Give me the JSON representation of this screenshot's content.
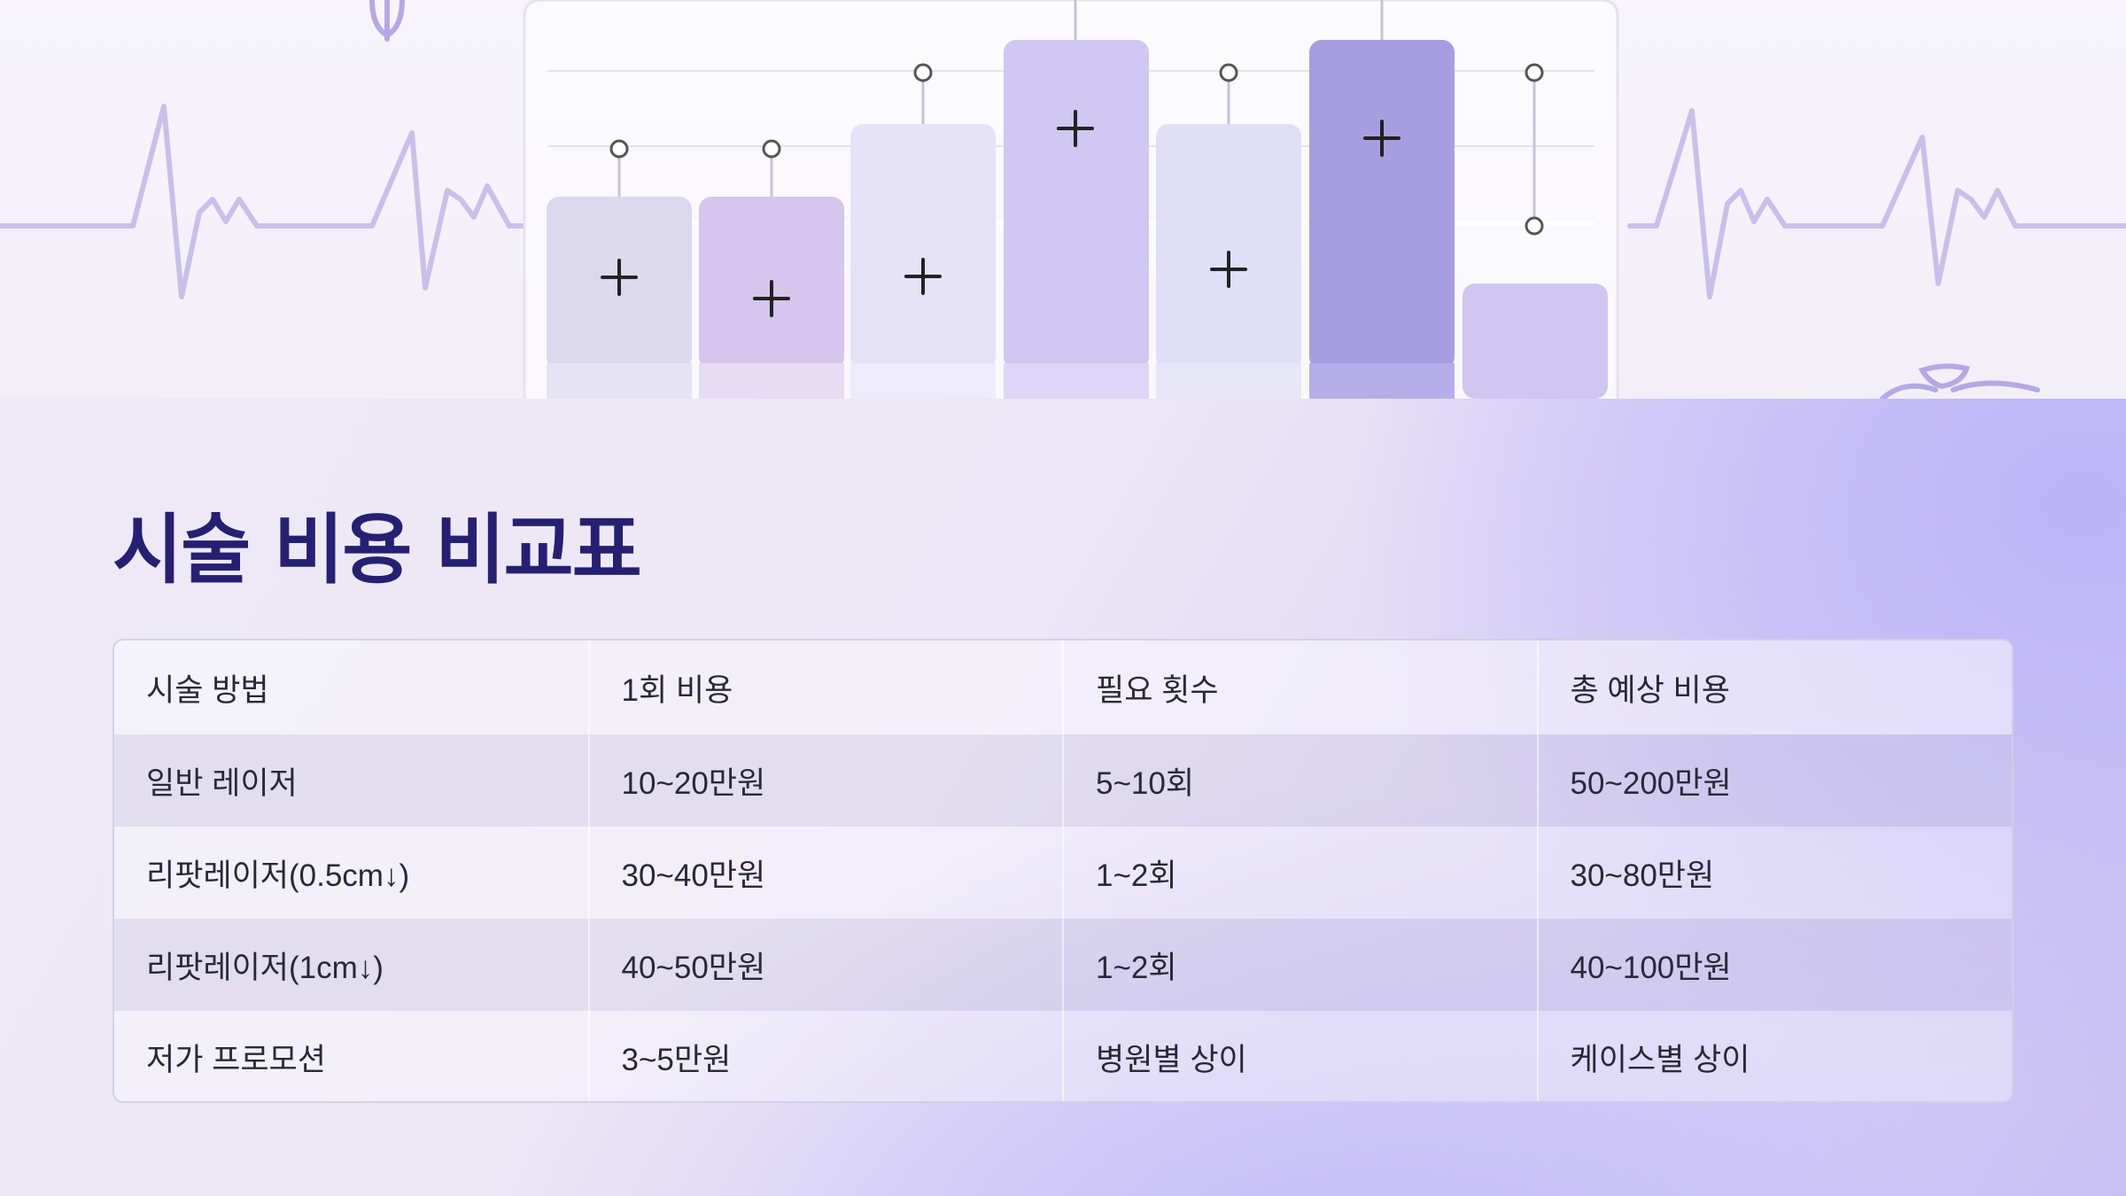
{
  "slide": {
    "title": "시술 비용 비교표"
  },
  "table": {
    "headers": [
      "시술 방법",
      "1회 비용",
      "필요 횟수",
      "총 예상 비용"
    ],
    "rows": [
      [
        "일반 레이저",
        "10~20만원",
        "5~10회",
        "50~200만원"
      ],
      [
        "리팟레이저(0.5cm↓)",
        "30~40만원",
        "1~2회",
        "30~80만원"
      ],
      [
        "리팟레이저(1cm↓)",
        "40~50만원",
        "1~2회",
        "40~100만원"
      ],
      [
        "저가 프로모션",
        "3~5만원",
        "병원별 상이",
        "케이스별 상이"
      ]
    ]
  },
  "hero_illustration": {
    "bar_colors": [
      "#dcd8ee",
      "#d6c5ec",
      "#e6e2f8",
      "#d0c7f2",
      "#dfe0f6",
      "#a79ee2",
      "#cfc6f2"
    ],
    "accent_color": "#b8ace6",
    "icons": [
      "heartbeat-line-icon",
      "plus-icon",
      "stethoscope-icon",
      "angel-wings-icon"
    ]
  },
  "colors": {
    "title": "#262073",
    "text": "#2a2838",
    "gradient_accent": "#c9c0f2"
  }
}
